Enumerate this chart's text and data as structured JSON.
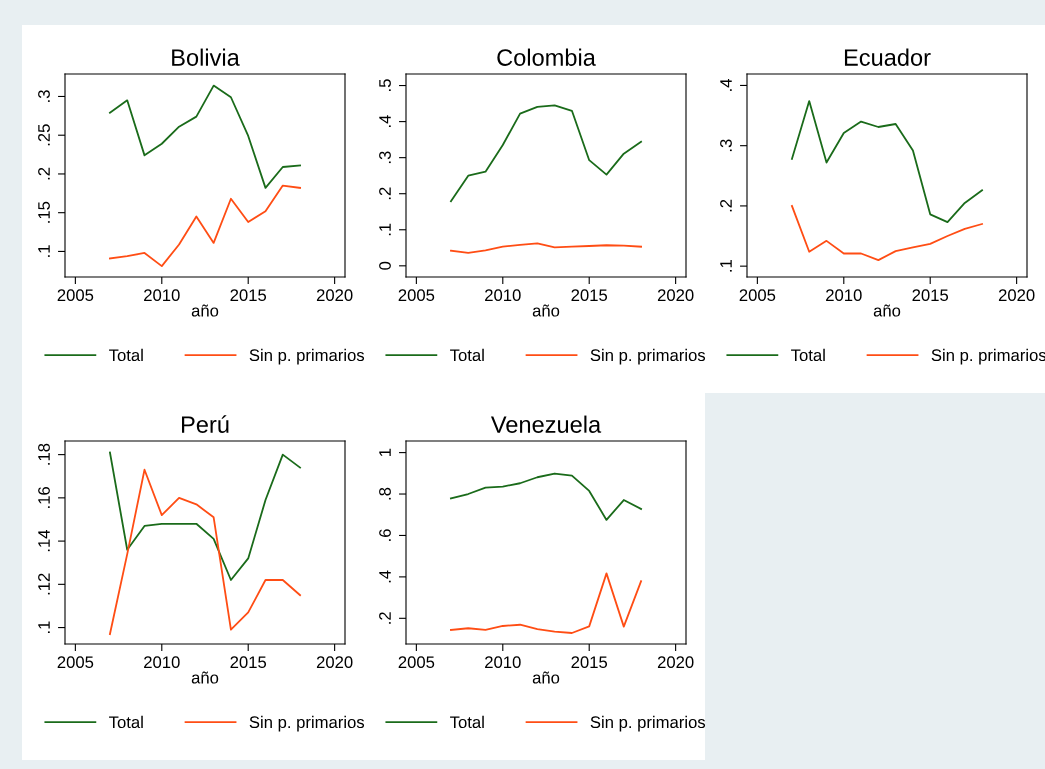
{
  "chart_data": [
    {
      "type": "line",
      "title": "Bolivia",
      "xlabel": "año",
      "x": [
        2007,
        2008,
        2009,
        2010,
        2011,
        2012,
        2013,
        2014,
        2015,
        2016,
        2017,
        2018
      ],
      "xlim": [
        2004.4,
        2020.6
      ],
      "xticks": [
        2005,
        2010,
        2015,
        2020
      ],
      "ylim": [
        0.067,
        0.329
      ],
      "yticks": [
        {
          "value": 0.1,
          "label": ".1"
        },
        {
          "value": 0.15,
          "label": ".15"
        },
        {
          "value": 0.2,
          "label": ".2"
        },
        {
          "value": 0.25,
          "label": ".25"
        },
        {
          "value": 0.3,
          "label": ".3"
        }
      ],
      "grid": false,
      "legend": "bottom",
      "line_style": "solid",
      "series": [
        {
          "name": "Total",
          "color": "#1a6b1a",
          "values": [
            0.279,
            0.295,
            0.224,
            0.239,
            0.261,
            0.274,
            0.314,
            0.299,
            0.249,
            0.182,
            0.209,
            0.211
          ]
        },
        {
          "name": "Sin p. primarios",
          "color": "#ff4d14",
          "values": [
            0.091,
            0.094,
            0.098,
            0.081,
            0.109,
            0.145,
            0.111,
            0.168,
            0.138,
            0.152,
            0.185,
            0.182
          ]
        }
      ]
    },
    {
      "type": "line",
      "title": "Colombia",
      "xlabel": "año",
      "x": [
        2007,
        2008,
        2009,
        2010,
        2011,
        2012,
        2013,
        2014,
        2015,
        2016,
        2017,
        2018
      ],
      "xlim": [
        2004.4,
        2020.6
      ],
      "xticks": [
        2005,
        2010,
        2015,
        2020
      ],
      "ylim": [
        -0.031,
        0.532
      ],
      "yticks": [
        0,
        {
          "value": 0.1,
          "label": ".1"
        },
        {
          "value": 0.2,
          "label": ".2"
        },
        {
          "value": 0.3,
          "label": ".3"
        },
        {
          "value": 0.4,
          "label": ".4"
        },
        {
          "value": 0.5,
          "label": ".5"
        }
      ],
      "grid": false,
      "legend": "bottom",
      "line_style": "solid",
      "series": [
        {
          "name": "Total",
          "color": "#1a6b1a",
          "values": [
            0.179,
            0.25,
            0.261,
            0.335,
            0.422,
            0.441,
            0.445,
            0.43,
            0.293,
            0.253,
            0.311,
            0.344
          ]
        },
        {
          "name": "Sin p. primarios",
          "color": "#ff4d14",
          "values": [
            0.042,
            0.036,
            0.043,
            0.053,
            0.058,
            0.062,
            0.051,
            0.053,
            0.055,
            0.057,
            0.056,
            0.053
          ]
        }
      ]
    },
    {
      "type": "line",
      "title": "Ecuador",
      "xlabel": "año",
      "x": [
        2007,
        2008,
        2009,
        2010,
        2011,
        2012,
        2013,
        2014,
        2015,
        2016,
        2017,
        2018
      ],
      "xlim": [
        2004.4,
        2020.6
      ],
      "xticks": [
        2005,
        2010,
        2015,
        2020
      ],
      "ylim": [
        0.082,
        0.419
      ],
      "yticks": [
        {
          "value": 0.1,
          "label": ".1"
        },
        {
          "value": 0.2,
          "label": ".2"
        },
        {
          "value": 0.3,
          "label": ".3"
        },
        {
          "value": 0.4,
          "label": ".4"
        }
      ],
      "grid": false,
      "legend": "bottom",
      "line_style": "solid",
      "series": [
        {
          "name": "Total",
          "color": "#1a6b1a",
          "values": [
            0.278,
            0.374,
            0.272,
            0.321,
            0.34,
            0.331,
            0.336,
            0.292,
            0.186,
            0.173,
            0.205,
            0.226
          ]
        },
        {
          "name": "Sin p. primarios",
          "color": "#ff4d14",
          "values": [
            0.2,
            0.124,
            0.142,
            0.121,
            0.121,
            0.11,
            0.125,
            0.131,
            0.137,
            0.15,
            0.162,
            0.17
          ]
        }
      ]
    },
    {
      "type": "line",
      "title": "Perú",
      "xlabel": "año",
      "x": [
        2007,
        2008,
        2009,
        2010,
        2011,
        2012,
        2013,
        2014,
        2015,
        2016,
        2017,
        2018
      ],
      "xlim": [
        2004.4,
        2020.6
      ],
      "xticks": [
        2005,
        2010,
        2015,
        2020
      ],
      "ylim": [
        0.0924,
        0.1863
      ],
      "yticks": [
        {
          "value": 0.1,
          "label": ".1"
        },
        {
          "value": 0.12,
          "label": ".12"
        },
        {
          "value": 0.14,
          "label": ".14"
        },
        {
          "value": 0.16,
          "label": ".16"
        },
        {
          "value": 0.18,
          "label": ".18"
        }
      ],
      "grid": false,
      "legend": "bottom",
      "line_style": "solid",
      "series": [
        {
          "name": "Total",
          "color": "#1a6b1a",
          "values": [
            0.181,
            0.136,
            0.147,
            0.148,
            0.148,
            0.148,
            0.141,
            0.122,
            0.132,
            0.159,
            0.18,
            0.174
          ]
        },
        {
          "name": "Sin p. primarios",
          "color": "#ff4d14",
          "values": [
            0.097,
            0.134,
            0.173,
            0.152,
            0.16,
            0.157,
            0.151,
            0.099,
            0.107,
            0.122,
            0.122,
            0.115
          ]
        }
      ]
    },
    {
      "type": "line",
      "title": "Venezuela",
      "xlabel": "año",
      "x": [
        2007,
        2008,
        2009,
        2010,
        2011,
        2012,
        2013,
        2014,
        2015,
        2016,
        2017,
        2018
      ],
      "xlim": [
        2004.4,
        2020.6
      ],
      "xticks": [
        2005,
        2010,
        2015,
        2020
      ],
      "ylim": [
        0.076,
        1.056
      ],
      "yticks": [
        {
          "value": 0.2,
          "label": ".2"
        },
        {
          "value": 0.4,
          "label": ".4"
        },
        {
          "value": 0.6,
          "label": ".6"
        },
        {
          "value": 0.8,
          "label": ".8"
        },
        1
      ],
      "grid": false,
      "legend": "bottom",
      "line_style": "solid",
      "series": [
        {
          "name": "Total",
          "color": "#1a6b1a",
          "values": [
            0.779,
            0.8,
            0.831,
            0.836,
            0.852,
            0.881,
            0.899,
            0.889,
            0.815,
            0.675,
            0.771,
            0.728
          ]
        },
        {
          "name": "Sin p. primarios",
          "color": "#ff4d14",
          "values": [
            0.144,
            0.152,
            0.144,
            0.163,
            0.169,
            0.148,
            0.136,
            0.129,
            0.161,
            0.417,
            0.16,
            0.379
          ]
        }
      ]
    }
  ]
}
